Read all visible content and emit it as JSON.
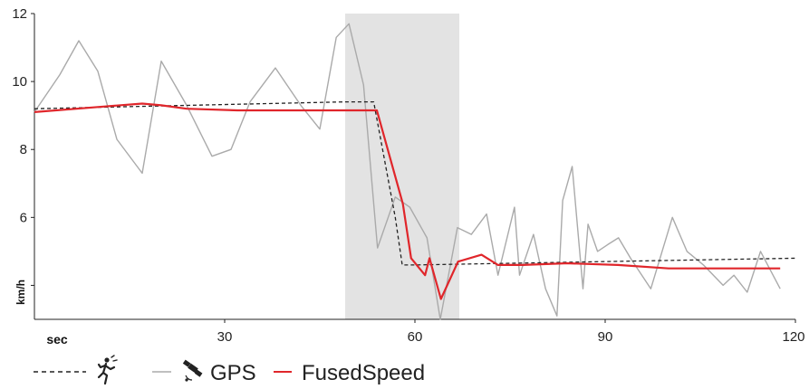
{
  "chart_data": {
    "type": "line",
    "ylabel": "km/h",
    "xlabel": "sec",
    "xlim": [
      0,
      120
    ],
    "ylim": [
      3,
      12
    ],
    "x_ticks": [
      30,
      60,
      90,
      120
    ],
    "y_ticks": [
      4,
      6,
      8,
      10,
      12
    ],
    "y_tick_labels": [
      "",
      "6",
      "8",
      "10",
      "12"
    ],
    "highlight_band": {
      "x_start": 49,
      "x_end": 67,
      "color": "#e3e3e3"
    },
    "legend": {
      "items": [
        {
          "key": "reference",
          "style": "dashed",
          "color": "#222222",
          "icon": "runner-icon",
          "label": ""
        },
        {
          "key": "gps",
          "style": "solid",
          "color": "#aaaaaa",
          "icon": "satellite-icon",
          "label": "GPS"
        },
        {
          "key": "fused",
          "style": "solid",
          "color": "#e0262b",
          "icon": "",
          "label": "FusedSpeed"
        }
      ]
    },
    "series": [
      {
        "key": "gps",
        "color": "#aaaaaa",
        "style": "solid",
        "x": [
          0,
          4,
          7,
          10,
          13,
          17,
          20,
          24,
          28,
          31,
          34,
          38,
          42,
          45,
          47.6,
          49.6,
          51.9,
          54.1,
          56.9,
          59.2,
          61.9,
          64,
          66.7,
          68.9,
          71.3,
          73.1,
          75.7,
          76.5,
          78.7,
          80.6,
          82.4,
          83.3,
          84.8,
          86.5,
          87.3,
          88.8,
          90.4,
          92.1,
          94,
          97.2,
          100.6,
          102.9,
          105.5,
          108.6,
          110.3,
          112.4,
          114.5,
          117.6
        ],
        "values": [
          9.1,
          10.2,
          11.2,
          10.3,
          8.3,
          7.3,
          10.6,
          9.3,
          7.8,
          8.0,
          9.4,
          10.4,
          9.3,
          8.6,
          11.3,
          11.7,
          9.9,
          5.1,
          6.6,
          6.3,
          5.4,
          3.0,
          5.7,
          5.5,
          6.1,
          4.3,
          6.3,
          4.3,
          5.5,
          3.9,
          3.1,
          6.5,
          7.5,
          3.9,
          5.8,
          5.0,
          5.2,
          5.4,
          4.8,
          3.9,
          6.0,
          5.0,
          4.6,
          4.0,
          4.3,
          3.8,
          5.0,
          3.9
        ]
      },
      {
        "key": "reference",
        "color": "#222222",
        "style": "dashed",
        "x": [
          0,
          49,
          53.5,
          56.9,
          58.0,
          60.0,
          120
        ],
        "values": [
          9.2,
          9.4,
          9.4,
          6.0,
          4.6,
          4.6,
          4.8
        ]
      },
      {
        "key": "fused",
        "color": "#e0262b",
        "style": "solid",
        "x": [
          0,
          10,
          17,
          20,
          24,
          32,
          38,
          45,
          50,
          54,
          58.1,
          59.4,
          61.6,
          62.3,
          64.1,
          66.8,
          70.5,
          73.1,
          77,
          84,
          92,
          100,
          110,
          117.6
        ],
        "values": [
          9.1,
          9.25,
          9.35,
          9.3,
          9.2,
          9.15,
          9.15,
          9.15,
          9.15,
          9.15,
          6.4,
          4.8,
          4.3,
          4.8,
          3.6,
          4.7,
          4.9,
          4.6,
          4.6,
          4.65,
          4.6,
          4.5,
          4.5,
          4.5
        ]
      }
    ]
  }
}
